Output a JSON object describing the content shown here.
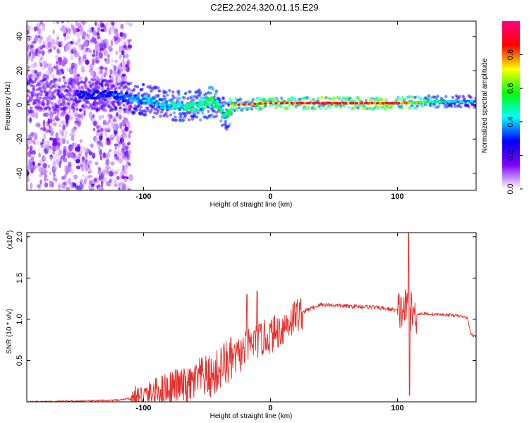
{
  "figure": {
    "title": "C2E2.2024.320.01.15.E29"
  },
  "chart_data": [
    {
      "type": "heatmap",
      "xlabel": "Height of straight line (km)",
      "ylabel": "Frequency (Hz)",
      "xlim": [
        -192,
        162
      ],
      "ylim": [
        -50,
        49
      ],
      "x_ticks": [
        -100,
        0,
        100
      ],
      "y_ticks": [
        -40,
        -20,
        0,
        20,
        40
      ],
      "colorbar": {
        "label": "Normalized spectral amplitude",
        "range": [
          0,
          1
        ],
        "ticks": [
          "0.0",
          "0.2",
          "0.4",
          "0.6",
          "0.8"
        ],
        "colors": [
          "#ffffff",
          "#8000ff",
          "#0000ff",
          "#00ffff",
          "#00ff00",
          "#ffff00",
          "#ff0000",
          "#ff0080"
        ]
      },
      "ridge_points": [
        {
          "x": -140,
          "y": 6,
          "amp": 0.3
        },
        {
          "x": -120,
          "y": 5,
          "amp": 0.35
        },
        {
          "x": -100,
          "y": 3,
          "amp": 0.4
        },
        {
          "x": -80,
          "y": 0,
          "amp": 0.45
        },
        {
          "x": -60,
          "y": -1,
          "amp": 0.5
        },
        {
          "x": -45,
          "y": 2,
          "amp": 0.55
        },
        {
          "x": -35,
          "y": -6,
          "amp": 0.45
        },
        {
          "x": -30,
          "y": 0,
          "amp": 0.7
        },
        {
          "x": 0,
          "y": 1,
          "amp": 0.8
        },
        {
          "x": 50,
          "y": 1,
          "amp": 0.9
        },
        {
          "x": 100,
          "y": 1,
          "amp": 0.9
        },
        {
          "x": 130,
          "y": 2,
          "amp": 0.5
        },
        {
          "x": 160,
          "y": 2,
          "amp": 0.4
        }
      ]
    },
    {
      "type": "line",
      "xlabel": "Height of straight line (km)",
      "ylabel": "SNR (10 * v/v)",
      "multiplier_label": "(x10",
      "multiplier_exp": "4",
      "multiplier_close": ")",
      "xlim": [
        -192,
        162
      ],
      "ylim": [
        0,
        2.05
      ],
      "x_ticks": [
        -100,
        0,
        100
      ],
      "y_ticks": [
        "0.5",
        "1.0",
        "1.5",
        "2.0"
      ],
      "color": "#e8302c",
      "series": [
        {
          "x": [
            -192,
            -150,
            -120,
            -105,
            -95,
            -85,
            -75,
            -65,
            -55,
            -45,
            -38,
            -30,
            -22,
            -15,
            -8,
            0,
            10,
            20,
            30,
            40,
            60,
            80,
            95,
            103,
            108,
            110,
            113,
            118,
            130,
            145,
            155,
            158,
            160,
            162
          ],
          "y": [
            0.0,
            0.01,
            0.02,
            0.05,
            0.08,
            0.15,
            0.2,
            0.18,
            0.3,
            0.3,
            0.45,
            0.5,
            0.6,
            0.7,
            0.75,
            0.8,
            0.9,
            1.05,
            1.12,
            1.18,
            1.16,
            1.15,
            1.12,
            1.1,
            1.15,
            1.1,
            1.05,
            1.07,
            1.06,
            1.05,
            1.02,
            0.82,
            0.8,
            0.8
          ]
        }
      ]
    }
  ]
}
